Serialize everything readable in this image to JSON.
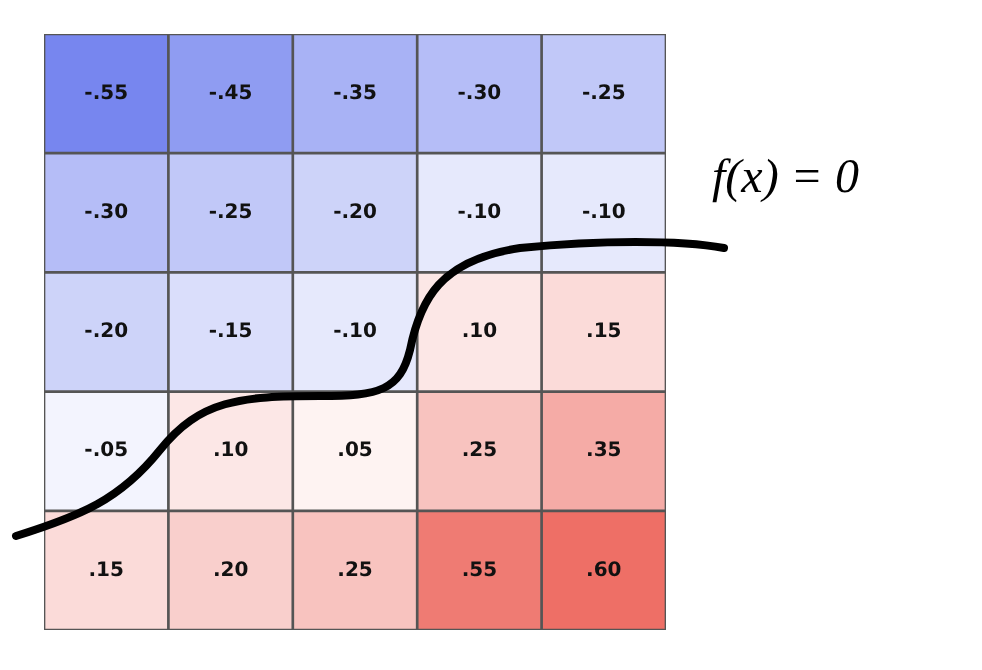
{
  "chart_data": {
    "type": "heatmap",
    "categories": [
      null,
      null,
      null,
      null,
      null
    ],
    "y_categories": [
      null,
      null,
      null,
      null,
      null
    ],
    "cells": [
      [
        -0.55,
        -0.45,
        -0.35,
        -0.3,
        -0.25
      ],
      [
        -0.3,
        -0.25,
        -0.2,
        -0.1,
        -0.1
      ],
      [
        -0.2,
        -0.15,
        -0.1,
        0.1,
        0.15
      ],
      [
        -0.05,
        0.1,
        0.05,
        0.25,
        0.35
      ],
      [
        0.15,
        0.2,
        0.25,
        0.55,
        0.6
      ]
    ],
    "cell_labels": [
      [
        "-.55",
        "-.45",
        "-.35",
        "-.30",
        "-.25"
      ],
      [
        "-.30",
        "-.25",
        "-.20",
        "-.10",
        "-.10"
      ],
      [
        "-.20",
        "-.15",
        "-.10",
        ".10",
        ".15"
      ],
      [
        "-.05",
        ".10",
        ".05",
        ".25",
        ".35"
      ],
      [
        ".15",
        ".20",
        ".25",
        ".55",
        ".60"
      ]
    ],
    "annotations": [
      "f(x) = 0"
    ]
  }
}
